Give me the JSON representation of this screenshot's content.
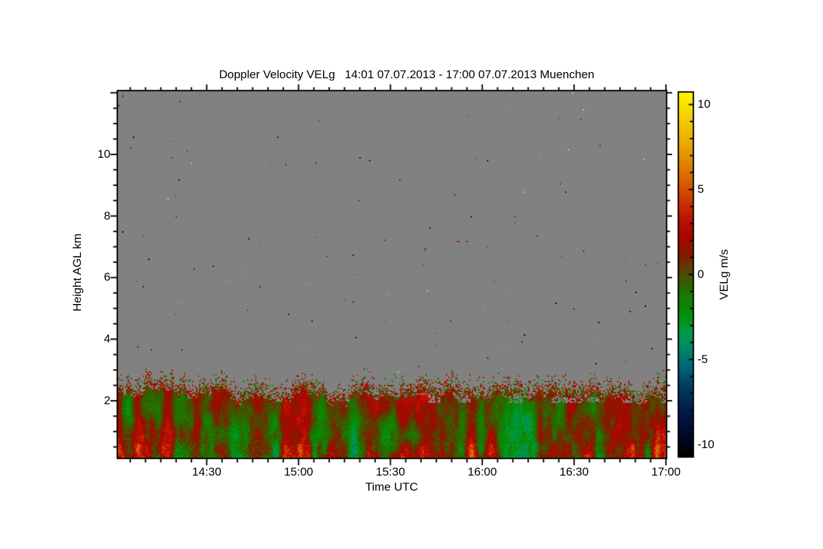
{
  "chart_data": {
    "type": "heatmap",
    "title": "Doppler Velocity VELg   14:01 07.07.2013 - 17:00 07.07.2013 Muenchen",
    "product": "Doppler Velocity VELg",
    "period_start": "14:01 07.07.2013",
    "period_end": "17:00 07.07.2013",
    "site": "Muenchen",
    "xlabel": "Time UTC",
    "ylabel": "Height AGL km",
    "x_axis": {
      "start_minutes": 841,
      "end_minutes": 1020,
      "minor_tick_step_minutes": 5,
      "ticks": [
        {
          "label": "14:30",
          "minutes": 870
        },
        {
          "label": "15:00",
          "minutes": 900
        },
        {
          "label": "15:30",
          "minutes": 930
        },
        {
          "label": "16:00",
          "minutes": 960
        },
        {
          "label": "16:30",
          "minutes": 990
        },
        {
          "label": "17:00",
          "minutes": 1020
        }
      ]
    },
    "y_axis": {
      "min_km": 0.15,
      "max_km": 12.05,
      "minor_tick_step_km": 0.5,
      "ticks": [
        {
          "label": "2",
          "km": 2
        },
        {
          "label": "4",
          "km": 4
        },
        {
          "label": "6",
          "km": 6
        },
        {
          "label": "8",
          "km": 8
        },
        {
          "label": "10",
          "km": 10
        }
      ]
    },
    "colorbar": {
      "label": "VELg m/s",
      "min": -10.7,
      "max": 10.7,
      "minor_tick_step": 1,
      "ticks": [
        {
          "label": "10",
          "value": 10
        },
        {
          "label": "5",
          "value": 5
        },
        {
          "label": "0",
          "value": 0
        },
        {
          "label": "-5",
          "value": -5
        },
        {
          "label": "-10",
          "value": -10
        }
      ],
      "stops": [
        [
          -10.7,
          "#000000"
        ],
        [
          -9.5,
          "#000926"
        ],
        [
          -8.5,
          "#001440"
        ],
        [
          -7.5,
          "#002852"
        ],
        [
          -6.5,
          "#004060"
        ],
        [
          -5.8,
          "#005870"
        ],
        [
          -5.2,
          "#006c74"
        ],
        [
          -4.6,
          "#00806a"
        ],
        [
          -4.0,
          "#00925c"
        ],
        [
          -3.3,
          "#009a42"
        ],
        [
          -2.6,
          "#049114"
        ],
        [
          -1.9,
          "#0c8600"
        ],
        [
          -1.2,
          "#1c7800"
        ],
        [
          -0.6,
          "#306200"
        ],
        [
          0,
          "#4c4c00"
        ],
        [
          0.5,
          "#643800"
        ],
        [
          1.0,
          "#7c2000"
        ],
        [
          1.6,
          "#941000"
        ],
        [
          2.3,
          "#aa0600"
        ],
        [
          3.2,
          "#bc1200"
        ],
        [
          4.2,
          "#ca3200"
        ],
        [
          5.0,
          "#d25000"
        ],
        [
          6.0,
          "#dc7200"
        ],
        [
          7.0,
          "#e49200"
        ],
        [
          8.0,
          "#ecb000"
        ],
        [
          9.0,
          "#f2ca00"
        ],
        [
          10.0,
          "#f8e400"
        ],
        [
          10.7,
          "#fcf400"
        ]
      ]
    },
    "no_data_color": "#818181",
    "data_description": {
      "summary": "Convective boundary layer below ~2.5-3.0 km AGL: mostly green (downdrafts ~ -2 m/s) with narrow red/orange updraft streaks (+2 to +5 m/s), an olive/orange-biased layer near 2-2.5 km, and a speckled aerosol fringe from ~2.3 up to ~3.0 km. Above ~3 km: uniform gray no-data field with sparse random single-pixel noise in yellow, orange, red, green, teal, navy and black.",
      "boundary_layer_top_km_mean": 2.75,
      "fringe_band_km": [
        2.3,
        3.0
      ],
      "noise_speckle_colors": [
        "#e8d400",
        "#d8a000",
        "#cc5000",
        "#c81400",
        "#981000",
        "#2e9e32",
        "#00925c",
        "#008878",
        "#16306e",
        "#0a1440",
        "#000000"
      ]
    }
  }
}
